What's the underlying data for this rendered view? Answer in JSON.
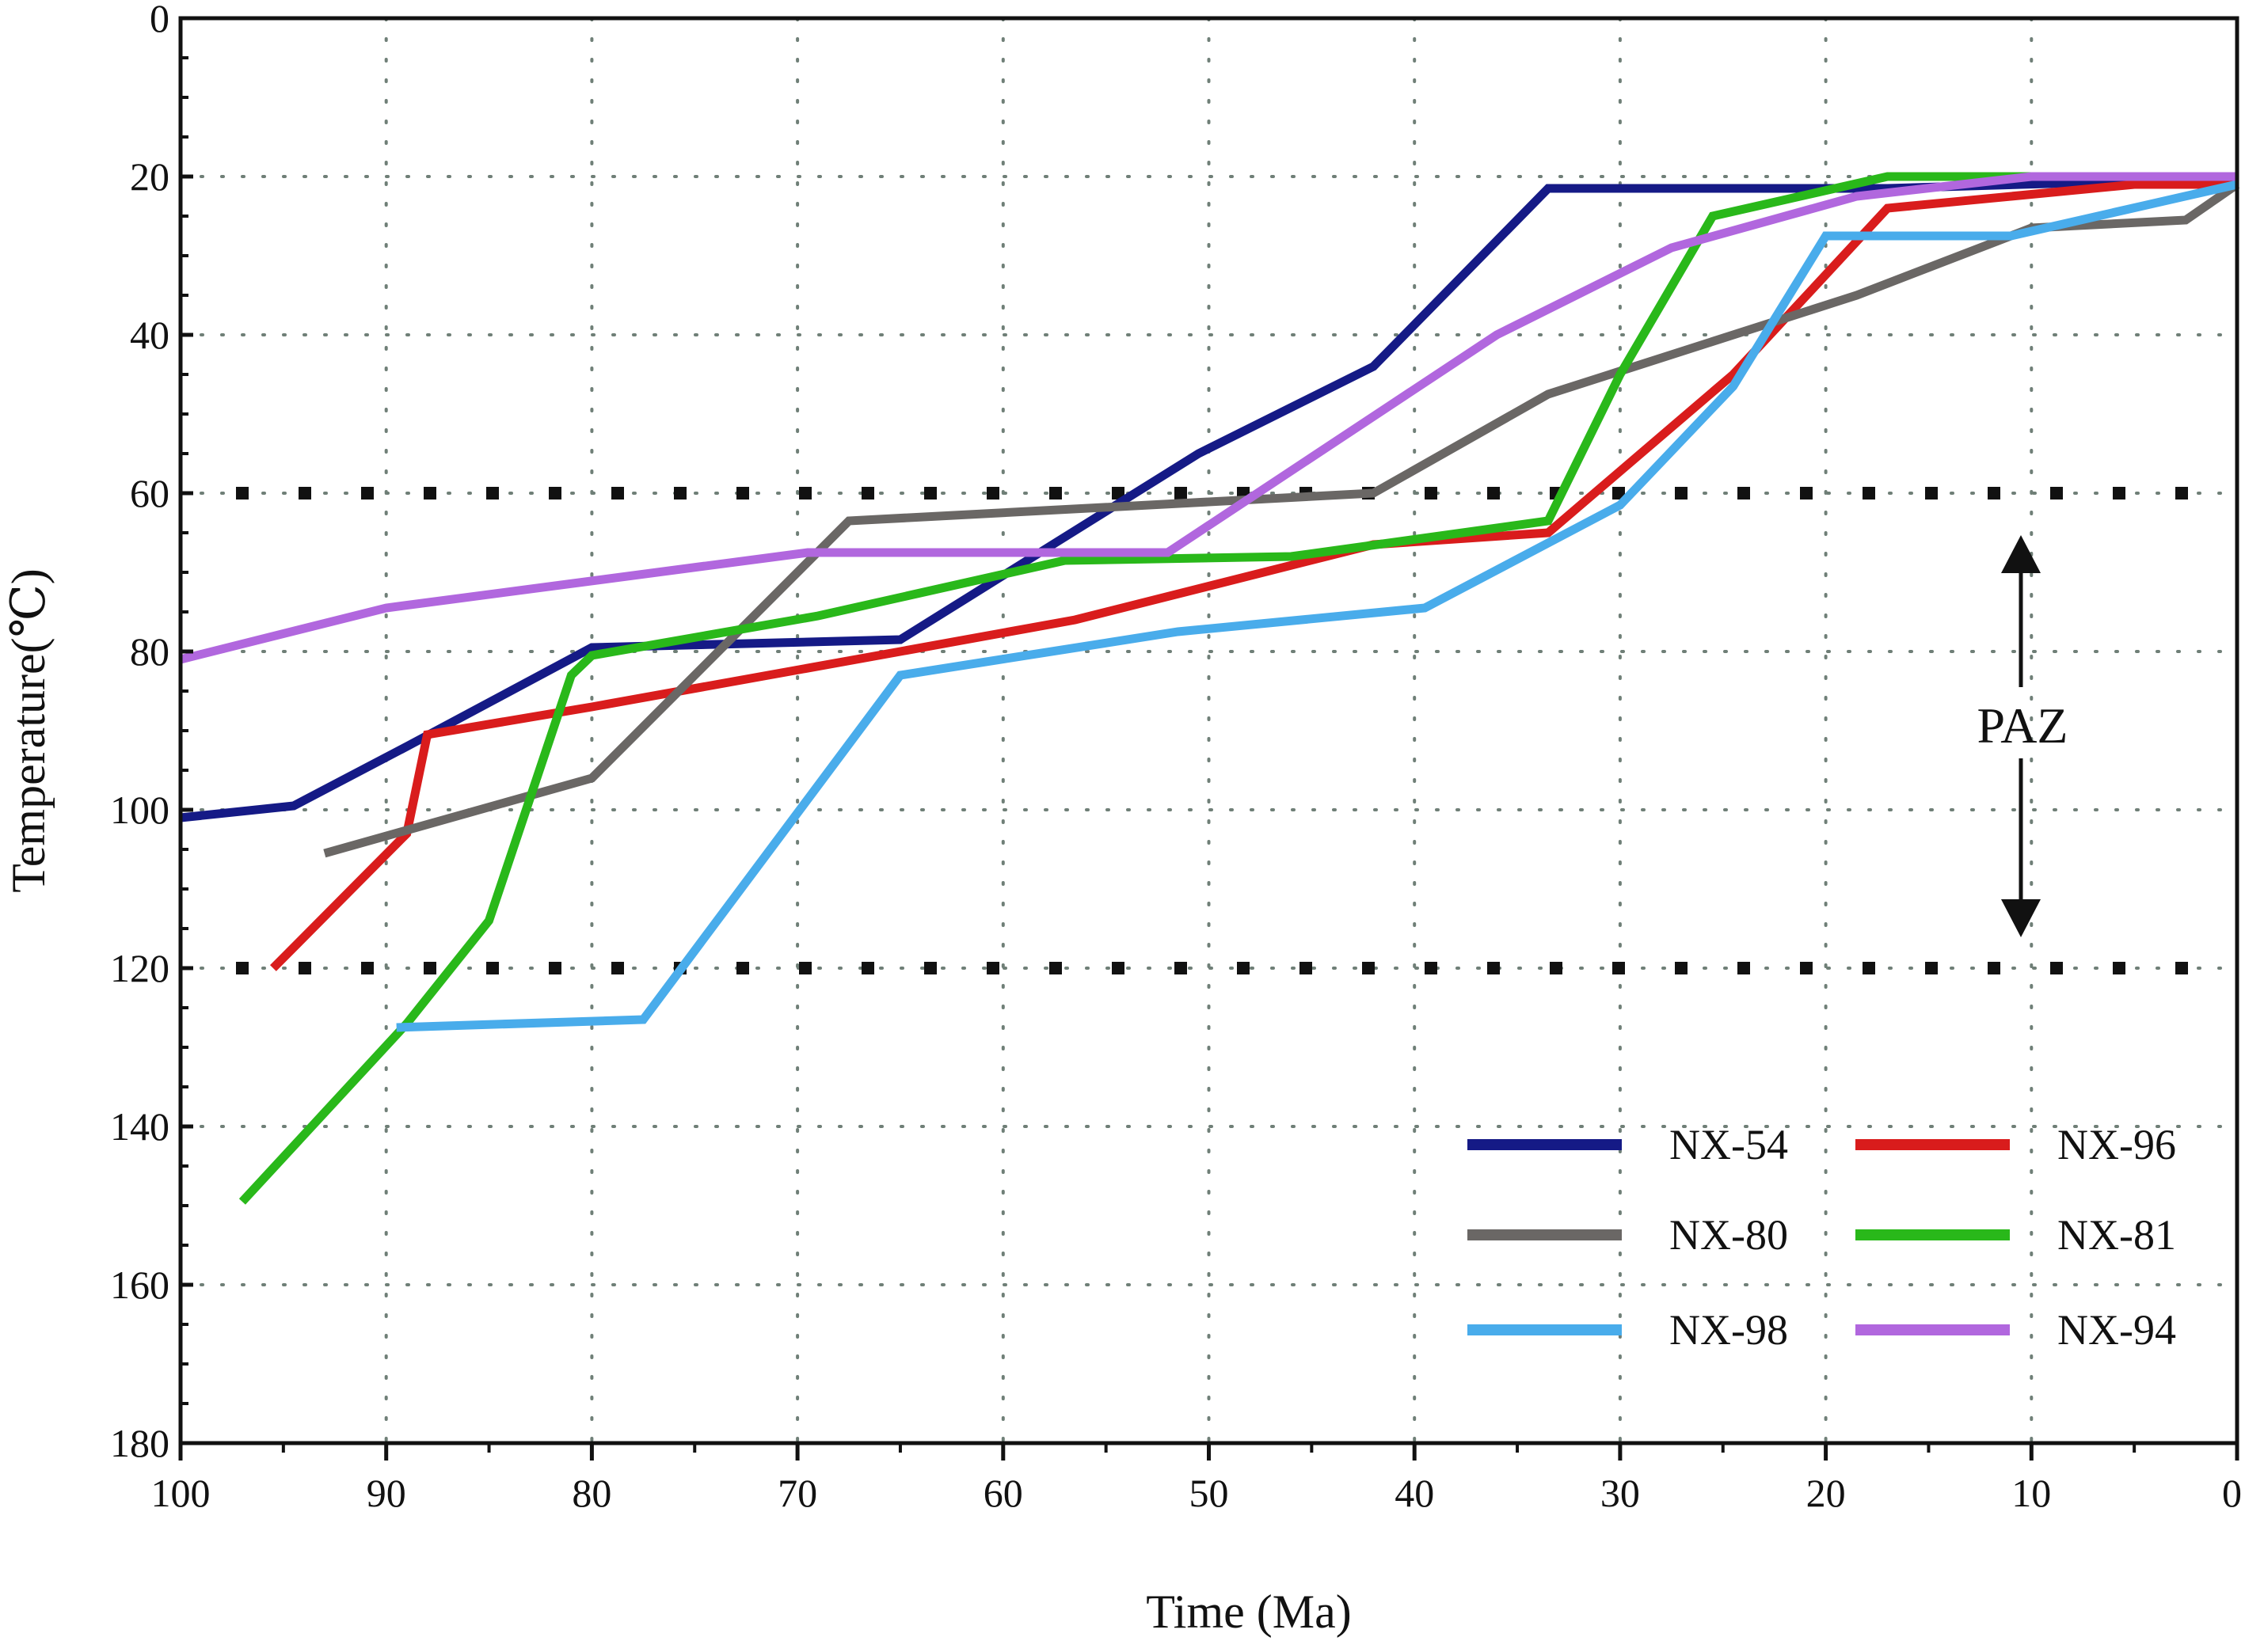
{
  "chart_data": {
    "type": "line",
    "xlabel": "Time (Ma)",
    "ylabel": "Temperature(℃)",
    "xlim": [
      100,
      0
    ],
    "ylim": [
      0,
      180
    ],
    "x_ticks": [
      "100",
      "90",
      "80",
      "70",
      "60",
      "50",
      "40",
      "30",
      "20",
      "10",
      "0"
    ],
    "y_ticks": [
      "0",
      "20",
      "40",
      "60",
      "80",
      "100",
      "120",
      "140",
      "160",
      "180"
    ],
    "grid": true,
    "legend_position": "bottom-right",
    "zone": {
      "label": "PAZ",
      "from": 60,
      "to": 120
    },
    "series": [
      {
        "name": "NX-54",
        "color": "#151a86",
        "x": [
          100,
          94.5,
          89,
          80,
          65,
          50.5,
          42,
          33.5,
          17,
          4,
          0
        ],
        "y": [
          101,
          99.5,
          92,
          79.5,
          78.5,
          55,
          44,
          21.5,
          21.5,
          20.5,
          20.5
        ]
      },
      {
        "name": "NX-96",
        "color": "#d91c1c",
        "x": [
          95.5,
          89,
          88,
          80,
          65,
          56.5,
          42,
          33.5,
          24.5,
          17,
          5,
          0
        ],
        "y": [
          120,
          103,
          90.5,
          87,
          80,
          76,
          66.5,
          65,
          45,
          24,
          21,
          21
        ]
      },
      {
        "name": "NX-80",
        "color": "#6a6765",
        "x": [
          93,
          80,
          67.5,
          42,
          33.5,
          18.5,
          10,
          2.5,
          0
        ],
        "y": [
          105.5,
          96,
          63.5,
          60,
          47.5,
          35,
          26.5,
          25.5,
          21
        ]
      },
      {
        "name": "NX-81",
        "color": "#29b81a",
        "x": [
          97,
          89,
          85,
          81,
          80,
          69,
          57,
          46,
          33.5,
          30,
          25.5,
          17,
          0
        ],
        "y": [
          149.5,
          127,
          114,
          83,
          80.5,
          75.5,
          68.5,
          68,
          63.5,
          45,
          25,
          20,
          20
        ]
      },
      {
        "name": "NX-98",
        "color": "#49aceb",
        "x": [
          89.5,
          77.5,
          65,
          51.5,
          39.5,
          30,
          24.5,
          20,
          11,
          0
        ],
        "y": [
          127.5,
          126.5,
          83,
          77.5,
          74.5,
          61.5,
          46.5,
          27.5,
          27.5,
          21
        ]
      },
      {
        "name": "NX-94",
        "color": "#b167de",
        "x": [
          100,
          90,
          69.5,
          52,
          36,
          27.5,
          18.5,
          10,
          0
        ],
        "y": [
          81,
          74.5,
          67.5,
          67.5,
          40,
          29,
          22.5,
          20,
          20
        ]
      }
    ]
  }
}
